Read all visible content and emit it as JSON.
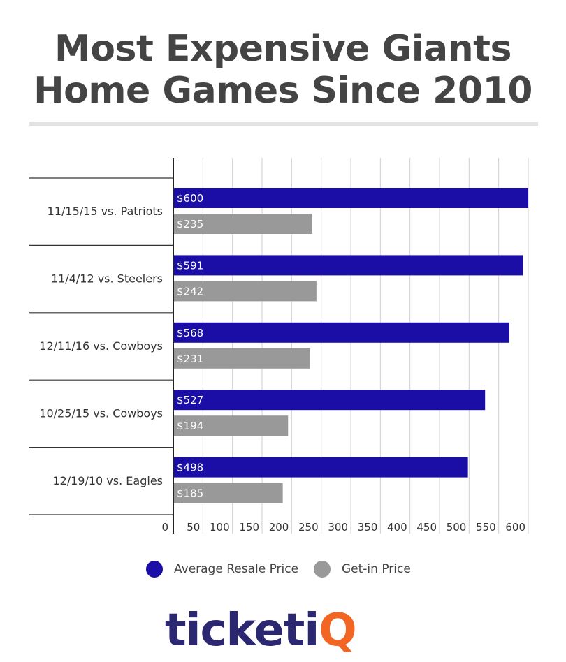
{
  "title": "Most Expensive Giants Home Games Since 2010",
  "chart_data": {
    "type": "bar",
    "orientation": "horizontal",
    "title": "Most Expensive Giants Home Games Since 2010",
    "categories": [
      "11/15/15 vs. Patriots",
      "11/4/12 vs. Steelers",
      "12/11/16 vs. Cowboys",
      "10/25/15 vs. Cowboys",
      "12/19/10 vs. Eagles"
    ],
    "series": [
      {
        "name": "Average Resale Price",
        "values": [
          600,
          591,
          568,
          527,
          498
        ],
        "labels": [
          "$600",
          "$591",
          "$568",
          "$527",
          "$498"
        ],
        "color": "#1a0ea6"
      },
      {
        "name": "Get-in Price",
        "values": [
          235,
          242,
          231,
          194,
          185
        ],
        "labels": [
          "$235",
          "$242",
          "$231",
          "$194",
          "$185"
        ],
        "color": "#999999"
      }
    ],
    "xlim": [
      0,
      600
    ],
    "xticks": [
      0,
      50,
      100,
      150,
      200,
      250,
      300,
      350,
      400,
      450,
      500,
      550,
      600
    ],
    "grid": true,
    "legend_position": "bottom"
  },
  "legend": {
    "resale_label": "Average Resale Price",
    "getin_label": "Get-in Price",
    "resale_color": "#1a0ea6",
    "getin_color": "#999999"
  },
  "logo": {
    "text": "ticketiQ",
    "text_color": "#2b2770",
    "accent_color": "#f26522"
  }
}
